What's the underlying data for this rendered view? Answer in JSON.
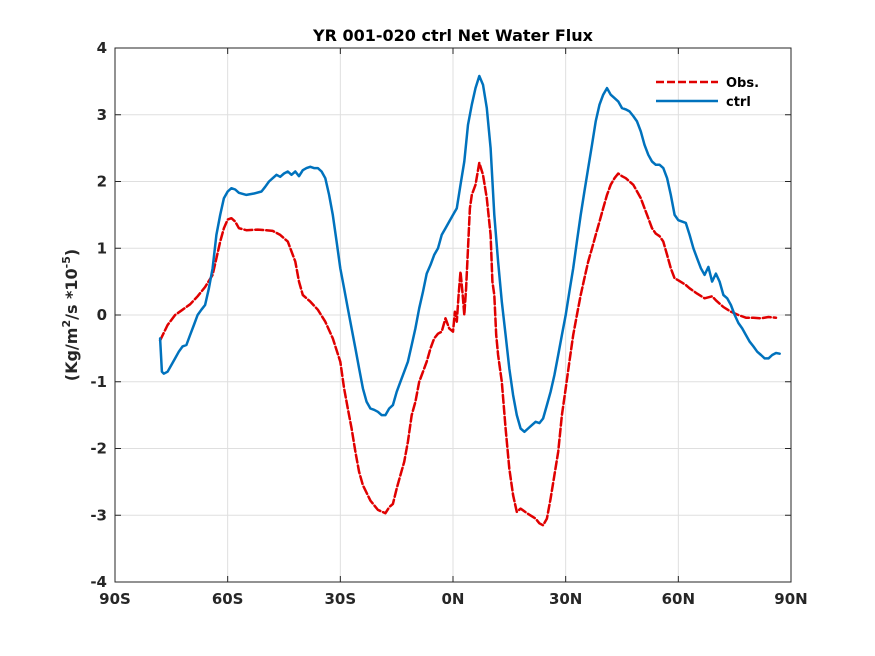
{
  "chart_data": {
    "type": "line",
    "title": "YR 001-020 ctrl  Net Water Flux",
    "ylabel": "(Kg/m2/s *10-5)",
    "ylabel_parts": {
      "base": "(Kg/m",
      "sup1": "2",
      "mid": "/s *10",
      "sup2": "-5",
      "end": ")"
    },
    "xlabel": "",
    "xlim": [
      -90,
      90
    ],
    "ylim": [
      -4,
      4
    ],
    "x_ticks": [
      -90,
      -60,
      -30,
      0,
      30,
      60,
      90
    ],
    "x_tick_labels": [
      "90S",
      "60S",
      "30S",
      "0N",
      "30N",
      "60N",
      "90N"
    ],
    "y_ticks": [
      -4,
      -3,
      -2,
      -1,
      0,
      1,
      2,
      3,
      4
    ],
    "y_tick_labels": [
      "-4",
      "-3",
      "-2",
      "-1",
      "0",
      "1",
      "2",
      "3",
      "4"
    ],
    "grid": true,
    "legend_position": "top-right",
    "series": [
      {
        "name": "Obs.",
        "color": "#e00000",
        "dash": true,
        "points": [
          [
            -78,
            -0.38
          ],
          [
            -76,
            -0.15
          ],
          [
            -74,
            0.0
          ],
          [
            -72,
            0.08
          ],
          [
            -70,
            0.16
          ],
          [
            -68,
            0.28
          ],
          [
            -66,
            0.42
          ],
          [
            -64,
            0.6
          ],
          [
            -63,
            0.85
          ],
          [
            -62,
            1.1
          ],
          [
            -61,
            1.3
          ],
          [
            -60,
            1.43
          ],
          [
            -59,
            1.45
          ],
          [
            -58,
            1.4
          ],
          [
            -57,
            1.3
          ],
          [
            -55,
            1.27
          ],
          [
            -52,
            1.28
          ],
          [
            -50,
            1.27
          ],
          [
            -48,
            1.26
          ],
          [
            -46,
            1.2
          ],
          [
            -44,
            1.1
          ],
          [
            -42,
            0.8
          ],
          [
            -41,
            0.5
          ],
          [
            -40,
            0.3
          ],
          [
            -38,
            0.2
          ],
          [
            -36,
            0.08
          ],
          [
            -34,
            -0.1
          ],
          [
            -32,
            -0.35
          ],
          [
            -30,
            -0.7
          ],
          [
            -29,
            -1.1
          ],
          [
            -28,
            -1.4
          ],
          [
            -27,
            -1.7
          ],
          [
            -26,
            -2.05
          ],
          [
            -25,
            -2.35
          ],
          [
            -24,
            -2.55
          ],
          [
            -22,
            -2.78
          ],
          [
            -20,
            -2.92
          ],
          [
            -18,
            -2.97
          ],
          [
            -17,
            -2.88
          ],
          [
            -16,
            -2.83
          ],
          [
            -15,
            -2.6
          ],
          [
            -14,
            -2.4
          ],
          [
            -13,
            -2.2
          ],
          [
            -12,
            -1.9
          ],
          [
            -11,
            -1.5
          ],
          [
            -10,
            -1.3
          ],
          [
            -9,
            -1.0
          ],
          [
            -8,
            -0.85
          ],
          [
            -7,
            -0.7
          ],
          [
            -6,
            -0.5
          ],
          [
            -5,
            -0.35
          ],
          [
            -4,
            -0.28
          ],
          [
            -3,
            -0.25
          ],
          [
            -2,
            -0.05
          ],
          [
            -1,
            -0.2
          ],
          [
            0,
            -0.25
          ],
          [
            0.5,
            0.05
          ],
          [
            1,
            -0.1
          ],
          [
            1.5,
            0.3
          ],
          [
            2,
            0.65
          ],
          [
            2.5,
            0.35
          ],
          [
            3,
            0.0
          ],
          [
            3.5,
            0.4
          ],
          [
            4,
            1.0
          ],
          [
            4.5,
            1.6
          ],
          [
            5,
            1.8
          ],
          [
            6,
            1.95
          ],
          [
            7,
            2.28
          ],
          [
            8,
            2.1
          ],
          [
            9,
            1.75
          ],
          [
            10,
            1.2
          ],
          [
            10.5,
            0.5
          ],
          [
            11,
            0.3
          ],
          [
            11.5,
            -0.3
          ],
          [
            12,
            -0.6
          ],
          [
            13,
            -1.0
          ],
          [
            14,
            -1.7
          ],
          [
            15,
            -2.3
          ],
          [
            16,
            -2.7
          ],
          [
            17,
            -2.95
          ],
          [
            18,
            -2.9
          ],
          [
            20,
            -2.98
          ],
          [
            22,
            -3.05
          ],
          [
            23,
            -3.12
          ],
          [
            24,
            -3.15
          ],
          [
            25,
            -3.05
          ],
          [
            26,
            -2.75
          ],
          [
            27,
            -2.4
          ],
          [
            28,
            -2.05
          ],
          [
            29,
            -1.5
          ],
          [
            30,
            -1.1
          ],
          [
            31,
            -0.7
          ],
          [
            32,
            -0.3
          ],
          [
            33,
            0.0
          ],
          [
            34,
            0.3
          ],
          [
            35,
            0.55
          ],
          [
            36,
            0.8
          ],
          [
            37,
            1.0
          ],
          [
            38,
            1.2
          ],
          [
            39,
            1.4
          ],
          [
            40,
            1.6
          ],
          [
            41,
            1.8
          ],
          [
            42,
            1.95
          ],
          [
            43,
            2.05
          ],
          [
            44,
            2.12
          ],
          [
            45,
            2.08
          ],
          [
            46,
            2.05
          ],
          [
            48,
            1.95
          ],
          [
            50,
            1.75
          ],
          [
            51,
            1.6
          ],
          [
            52,
            1.45
          ],
          [
            53,
            1.3
          ],
          [
            54,
            1.22
          ],
          [
            55,
            1.18
          ],
          [
            56,
            1.1
          ],
          [
            57,
            0.9
          ],
          [
            58,
            0.7
          ],
          [
            59,
            0.55
          ],
          [
            60,
            0.52
          ],
          [
            62,
            0.45
          ],
          [
            63,
            0.4
          ],
          [
            65,
            0.32
          ],
          [
            67,
            0.25
          ],
          [
            69,
            0.28
          ],
          [
            70,
            0.22
          ],
          [
            72,
            0.12
          ],
          [
            74,
            0.05
          ],
          [
            76,
            0.0
          ],
          [
            78,
            -0.04
          ],
          [
            80,
            -0.04
          ],
          [
            82,
            -0.05
          ],
          [
            84,
            -0.03
          ],
          [
            86,
            -0.04
          ]
        ]
      },
      {
        "name": "ctrl",
        "color": "#0072bd",
        "dash": false,
        "points": [
          [
            -78,
            -0.35
          ],
          [
            -77.5,
            -0.85
          ],
          [
            -77,
            -0.88
          ],
          [
            -76,
            -0.85
          ],
          [
            -75,
            -0.75
          ],
          [
            -74,
            -0.65
          ],
          [
            -73,
            -0.55
          ],
          [
            -72,
            -0.47
          ],
          [
            -71,
            -0.45
          ],
          [
            -70,
            -0.3
          ],
          [
            -69,
            -0.15
          ],
          [
            -68,
            0.0
          ],
          [
            -67,
            0.08
          ],
          [
            -66,
            0.15
          ],
          [
            -65,
            0.4
          ],
          [
            -64,
            0.7
          ],
          [
            -63,
            1.2
          ],
          [
            -62,
            1.5
          ],
          [
            -61,
            1.75
          ],
          [
            -60,
            1.85
          ],
          [
            -59,
            1.9
          ],
          [
            -58,
            1.88
          ],
          [
            -57,
            1.83
          ],
          [
            -55,
            1.8
          ],
          [
            -53,
            1.82
          ],
          [
            -51,
            1.85
          ],
          [
            -50,
            1.92
          ],
          [
            -49,
            2.0
          ],
          [
            -48,
            2.05
          ],
          [
            -47,
            2.1
          ],
          [
            -46,
            2.07
          ],
          [
            -45,
            2.12
          ],
          [
            -44,
            2.15
          ],
          [
            -43,
            2.1
          ],
          [
            -42,
            2.15
          ],
          [
            -41,
            2.08
          ],
          [
            -40,
            2.17
          ],
          [
            -39,
            2.2
          ],
          [
            -38,
            2.22
          ],
          [
            -37,
            2.2
          ],
          [
            -36,
            2.2
          ],
          [
            -35,
            2.15
          ],
          [
            -34,
            2.05
          ],
          [
            -33,
            1.8
          ],
          [
            -32,
            1.5
          ],
          [
            -31,
            1.1
          ],
          [
            -30,
            0.7
          ],
          [
            -29,
            0.4
          ],
          [
            -28,
            0.1
          ],
          [
            -27,
            -0.2
          ],
          [
            -26,
            -0.5
          ],
          [
            -25,
            -0.8
          ],
          [
            -24,
            -1.1
          ],
          [
            -23,
            -1.3
          ],
          [
            -22,
            -1.4
          ],
          [
            -21,
            -1.42
          ],
          [
            -20,
            -1.45
          ],
          [
            -19,
            -1.5
          ],
          [
            -18,
            -1.5
          ],
          [
            -17,
            -1.4
          ],
          [
            -16,
            -1.35
          ],
          [
            -15,
            -1.15
          ],
          [
            -14,
            -1.0
          ],
          [
            -13,
            -0.85
          ],
          [
            -12,
            -0.7
          ],
          [
            -11,
            -0.45
          ],
          [
            -10,
            -0.2
          ],
          [
            -9,
            0.1
          ],
          [
            -8,
            0.35
          ],
          [
            -7,
            0.62
          ],
          [
            -6,
            0.75
          ],
          [
            -5,
            0.9
          ],
          [
            -4,
            1.0
          ],
          [
            -3,
            1.2
          ],
          [
            -2,
            1.3
          ],
          [
            -1,
            1.4
          ],
          [
            0,
            1.5
          ],
          [
            1,
            1.6
          ],
          [
            2,
            1.95
          ],
          [
            3,
            2.3
          ],
          [
            4,
            2.85
          ],
          [
            5,
            3.15
          ],
          [
            6,
            3.4
          ],
          [
            7,
            3.58
          ],
          [
            8,
            3.45
          ],
          [
            9,
            3.1
          ],
          [
            10,
            2.5
          ],
          [
            11,
            1.5
          ],
          [
            12,
            0.8
          ],
          [
            13,
            0.2
          ],
          [
            14,
            -0.3
          ],
          [
            15,
            -0.8
          ],
          [
            16,
            -1.2
          ],
          [
            17,
            -1.5
          ],
          [
            18,
            -1.7
          ],
          [
            19,
            -1.75
          ],
          [
            20,
            -1.7
          ],
          [
            21,
            -1.65
          ],
          [
            22,
            -1.6
          ],
          [
            23,
            -1.62
          ],
          [
            24,
            -1.55
          ],
          [
            25,
            -1.35
          ],
          [
            26,
            -1.15
          ],
          [
            27,
            -0.9
          ],
          [
            28,
            -0.6
          ],
          [
            29,
            -0.3
          ],
          [
            30,
            0.0
          ],
          [
            31,
            0.35
          ],
          [
            32,
            0.7
          ],
          [
            33,
            1.1
          ],
          [
            34,
            1.5
          ],
          [
            35,
            1.85
          ],
          [
            36,
            2.2
          ],
          [
            37,
            2.55
          ],
          [
            38,
            2.9
          ],
          [
            39,
            3.15
          ],
          [
            40,
            3.3
          ],
          [
            41,
            3.4
          ],
          [
            42,
            3.3
          ],
          [
            43,
            3.25
          ],
          [
            44,
            3.2
          ],
          [
            45,
            3.1
          ],
          [
            46,
            3.08
          ],
          [
            47,
            3.05
          ],
          [
            48,
            2.98
          ],
          [
            49,
            2.9
          ],
          [
            50,
            2.75
          ],
          [
            51,
            2.55
          ],
          [
            52,
            2.4
          ],
          [
            53,
            2.3
          ],
          [
            54,
            2.25
          ],
          [
            55,
            2.25
          ],
          [
            56,
            2.2
          ],
          [
            57,
            2.05
          ],
          [
            58,
            1.8
          ],
          [
            59,
            1.5
          ],
          [
            60,
            1.42
          ],
          [
            61,
            1.4
          ],
          [
            62,
            1.38
          ],
          [
            63,
            1.2
          ],
          [
            64,
            1.0
          ],
          [
            65,
            0.85
          ],
          [
            66,
            0.7
          ],
          [
            67,
            0.6
          ],
          [
            68,
            0.72
          ],
          [
            69,
            0.5
          ],
          [
            70,
            0.62
          ],
          [
            71,
            0.5
          ],
          [
            72,
            0.3
          ],
          [
            73,
            0.25
          ],
          [
            74,
            0.15
          ],
          [
            75,
            0.0
          ],
          [
            76,
            -0.12
          ],
          [
            77,
            -0.2
          ],
          [
            78,
            -0.3
          ],
          [
            79,
            -0.4
          ],
          [
            80,
            -0.47
          ],
          [
            81,
            -0.55
          ],
          [
            82,
            -0.6
          ],
          [
            83,
            -0.65
          ],
          [
            84,
            -0.65
          ],
          [
            85,
            -0.6
          ],
          [
            86,
            -0.57
          ],
          [
            87,
            -0.58
          ]
        ]
      }
    ]
  }
}
